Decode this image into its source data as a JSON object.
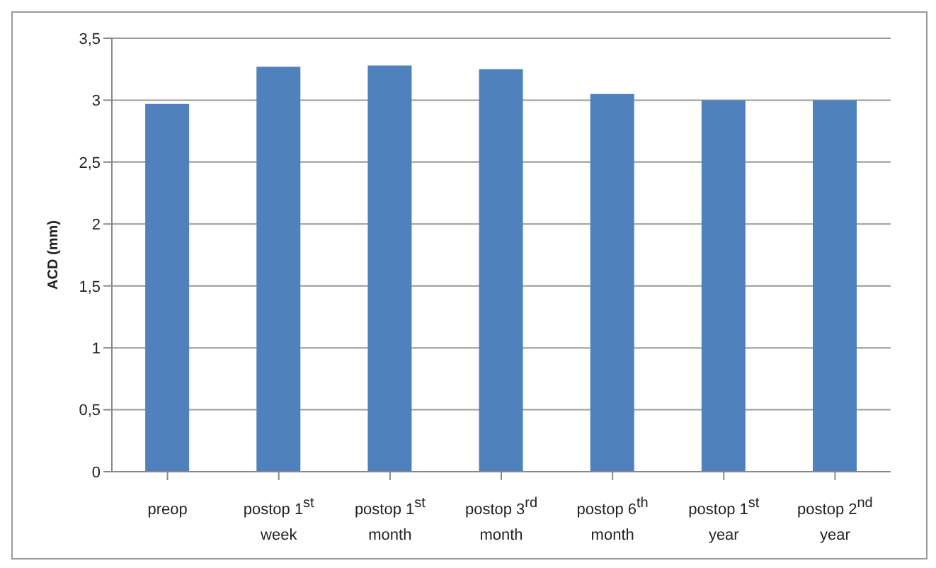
{
  "chart_data": {
    "type": "bar",
    "ylabel": "ACD (mm)",
    "categories": [
      "preop",
      "postop 1$^{st}$ week",
      "postop 1$^{st}$ month",
      "postop 3$^{rd}$ month",
      "postop 6$^{th}$ month",
      "postop 1$^{st}$ year",
      "postop 2$^{nd}$ year"
    ],
    "values": [
      2.97,
      3.27,
      3.28,
      3.25,
      3.05,
      3.0,
      3.0
    ],
    "color": "#4f81bd",
    "ylim": [
      0,
      3.5
    ],
    "yticks": [
      0,
      {
        "value": 0.5,
        "label": "0,5"
      },
      1,
      {
        "value": 1.5,
        "label": "1,5"
      },
      2,
      {
        "value": 2.5,
        "label": "2,5"
      },
      3,
      {
        "value": 3.5,
        "label": "3,5"
      }
    ],
    "grid": "y",
    "legend": false
  }
}
